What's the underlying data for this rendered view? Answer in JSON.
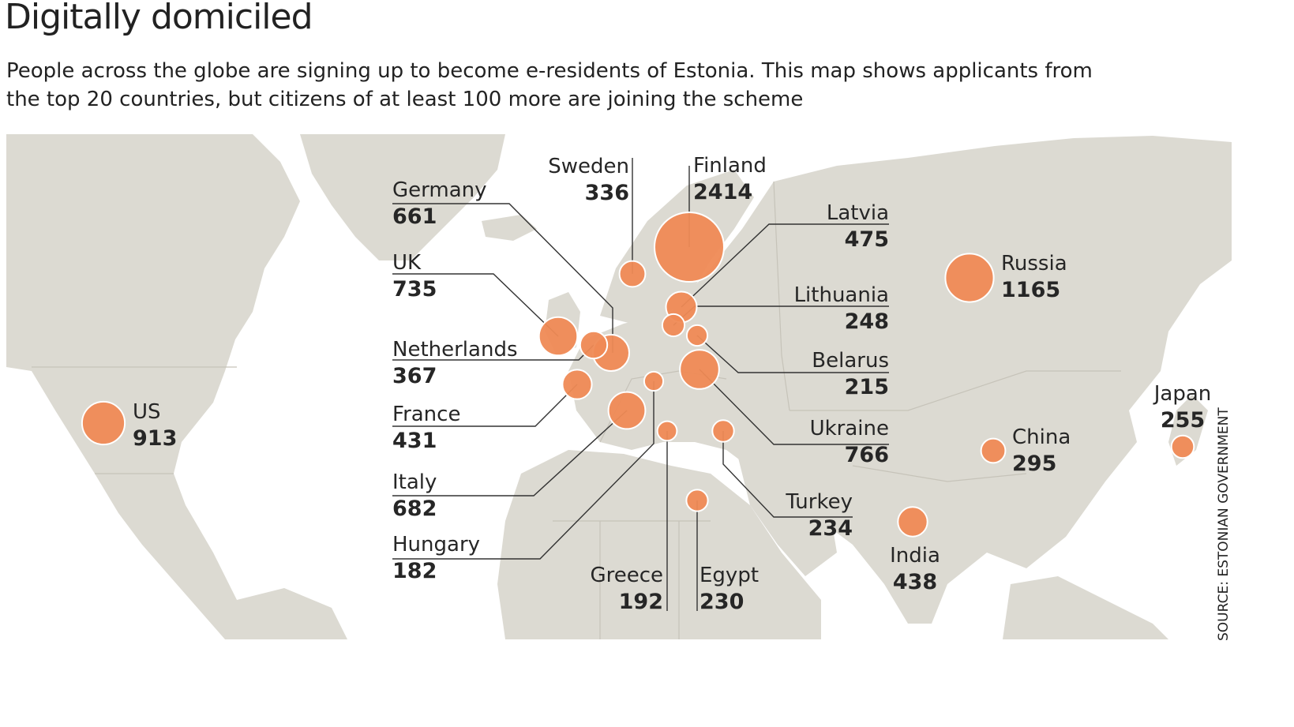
{
  "title": "Digitally domiciled",
  "subtitle": "People across the globe are signing up to become e-residents of Estonia. This map shows applicants from the top 20 countries, but citizens of at least 100 more are joining the scheme",
  "source": "SOURCE: ESTONIAN GOVERNMENT",
  "colors": {
    "bubble": "#ef8a55",
    "land": "#dcdad2",
    "leader": "#333333"
  },
  "countries": [
    {
      "name": "Finland",
      "value": "2414"
    },
    {
      "name": "Russia",
      "value": "1165"
    },
    {
      "name": "US",
      "value": "913"
    },
    {
      "name": "Ukraine",
      "value": "766"
    },
    {
      "name": "UK",
      "value": "735"
    },
    {
      "name": "Italy",
      "value": "682"
    },
    {
      "name": "Germany",
      "value": "661"
    },
    {
      "name": "Latvia",
      "value": "475"
    },
    {
      "name": "India",
      "value": "438"
    },
    {
      "name": "France",
      "value": "431"
    },
    {
      "name": "Netherlands",
      "value": "367"
    },
    {
      "name": "Sweden",
      "value": "336"
    },
    {
      "name": "China",
      "value": "295"
    },
    {
      "name": "Japan",
      "value": "255"
    },
    {
      "name": "Lithuania",
      "value": "248"
    },
    {
      "name": "Turkey",
      "value": "234"
    },
    {
      "name": "Egypt",
      "value": "230"
    },
    {
      "name": "Belarus",
      "value": "215"
    },
    {
      "name": "Greece",
      "value": "192"
    },
    {
      "name": "Hungary",
      "value": "182"
    }
  ]
}
